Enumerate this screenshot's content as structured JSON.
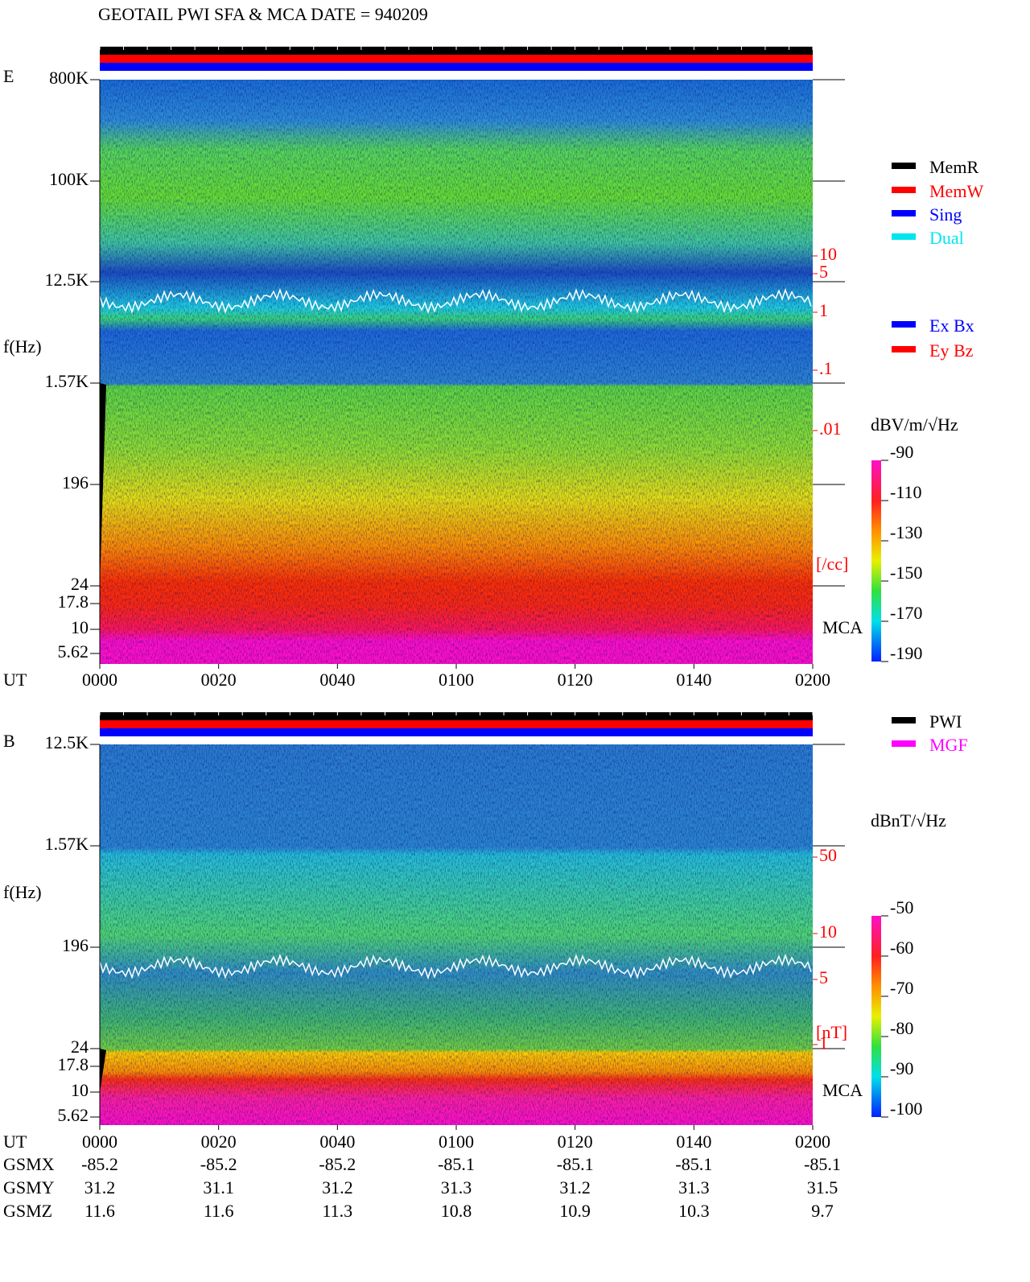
{
  "title": "GEOTAIL  PWI SFA & MCA   DATE = 940209",
  "panels": [
    {
      "label": "E",
      "y_axis_label": "f(Hz)",
      "freq_ticks": [
        "800K",
        "100K",
        "12.5K",
        "1.57K",
        "196",
        "24",
        "17.8",
        "10",
        "5.62"
      ],
      "x_label": "UT",
      "x_ticks": [
        "0000",
        "0020",
        "0040",
        "0100",
        "0120",
        "0140",
        "0200"
      ],
      "right_ticks": [
        "10",
        "5",
        "1",
        ".1",
        ".01"
      ],
      "right_unit": "[/cc]",
      "mca_label": "MCA",
      "legend": [
        {
          "name": "MemR",
          "color": "#000000"
        },
        {
          "name": "MemW",
          "color": "#ff0000"
        },
        {
          "name": "Sing",
          "color": "#0000ff"
        },
        {
          "name": "Dual",
          "color": "#00e5ee"
        }
      ],
      "legend2": [
        {
          "name": "Ex Bx",
          "color": "#0000ff"
        },
        {
          "name": "Ey Bz",
          "color": "#ff0000"
        }
      ],
      "colorbar_unit": "dBV/m/√Hz",
      "clim": [
        -190,
        -90
      ],
      "cticks": [
        -90,
        -110,
        -130,
        -150,
        -170,
        -190
      ]
    },
    {
      "label": "B",
      "y_axis_label": "f(Hz)",
      "freq_ticks": [
        "12.5K",
        "1.57K",
        "196",
        "24",
        "17.8",
        "10",
        "5.62"
      ],
      "x_label": "UT",
      "x_ticks": [
        "0000",
        "0020",
        "0040",
        "0100",
        "0120",
        "0140",
        "0200"
      ],
      "right_ticks": [
        "50",
        "10",
        "5",
        "1"
      ],
      "right_unit": "[nT]",
      "mca_label": "MCA",
      "legend": [
        {
          "name": "PWI",
          "color": "#000000"
        },
        {
          "name": "MGF",
          "color": "#ff00ff"
        }
      ],
      "colorbar_unit": "dBnT/√Hz",
      "clim": [
        -100,
        -50
      ],
      "cticks": [
        -50,
        -60,
        -70,
        -80,
        -90,
        -100
      ]
    }
  ],
  "orbit": [
    {
      "label": "GSMX",
      "values": [
        -85.2,
        -85.2,
        -85.2,
        -85.1,
        -85.1,
        -85.1,
        -85.1
      ]
    },
    {
      "label": "GSMY",
      "values": [
        31.2,
        31.1,
        31.2,
        31.3,
        31.2,
        31.3,
        31.5
      ]
    },
    {
      "label": "GSMZ",
      "values": [
        11.6,
        11.6,
        11.3,
        10.8,
        10.9,
        10.3,
        9.7
      ]
    }
  ]
}
